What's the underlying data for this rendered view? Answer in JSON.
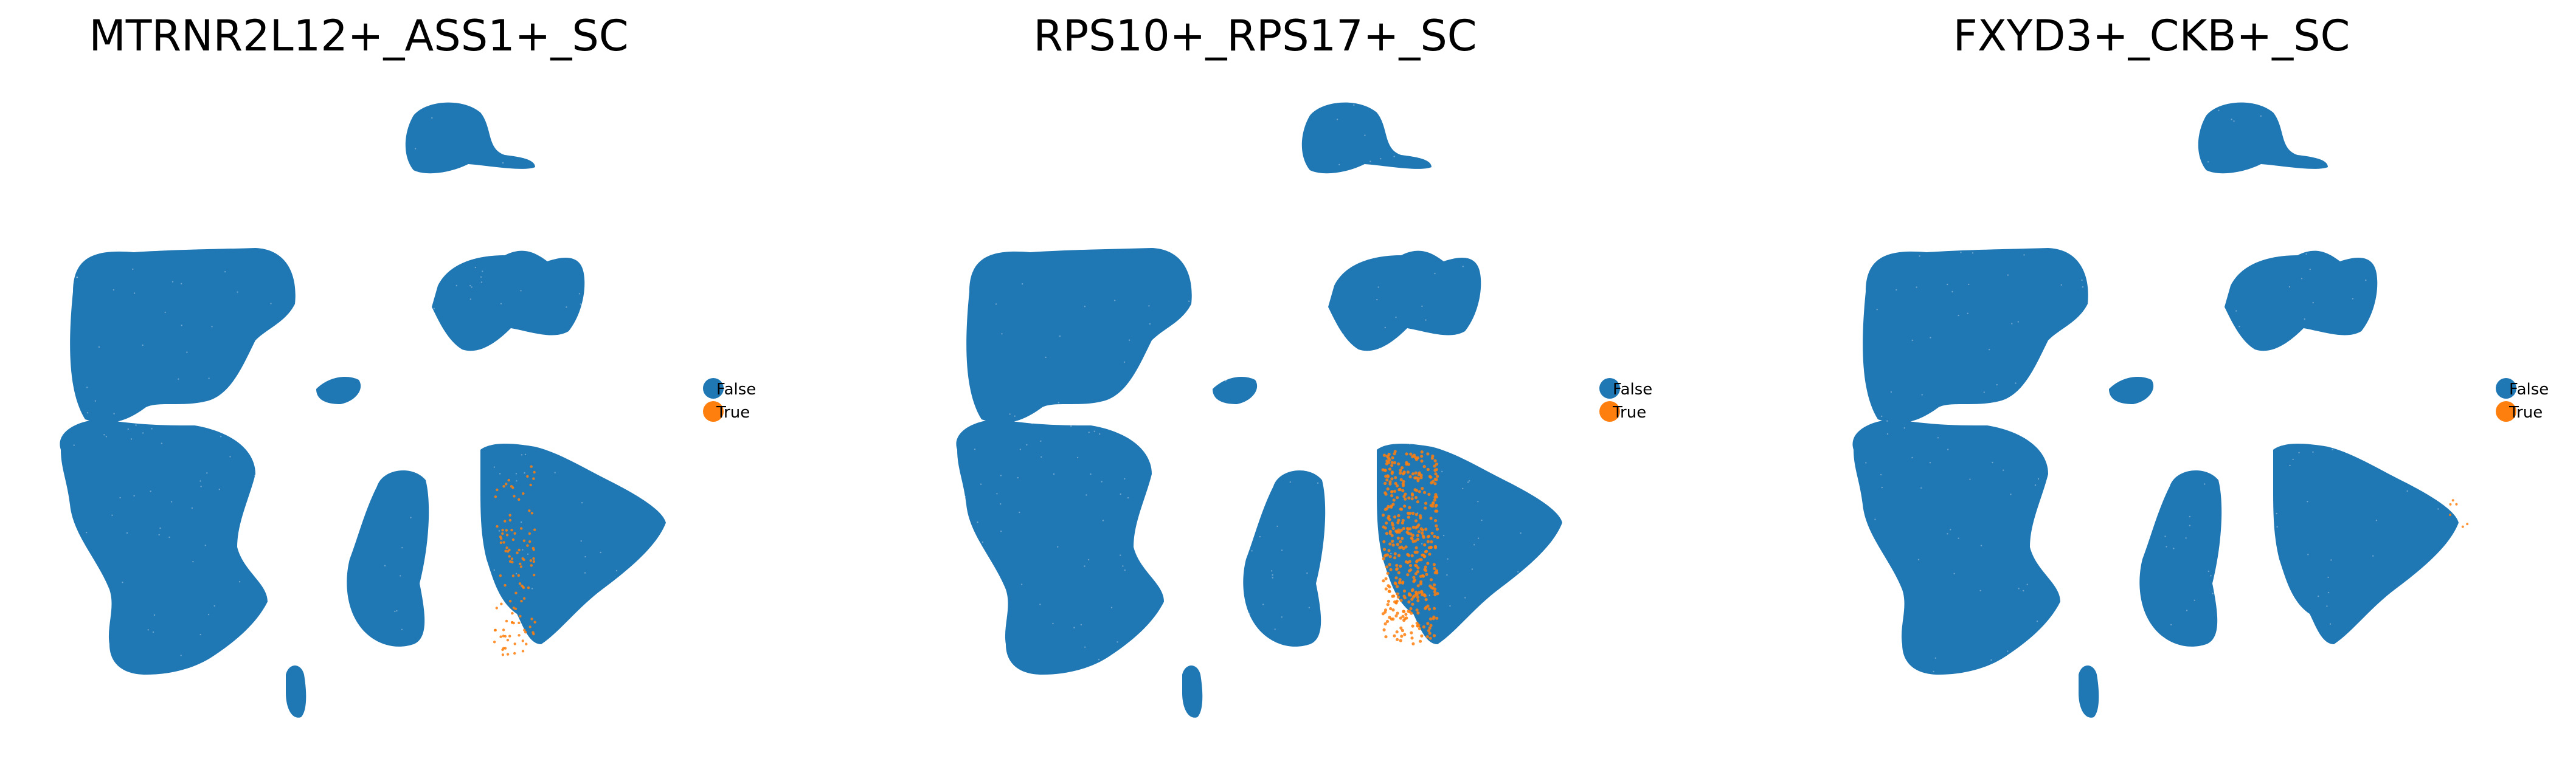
{
  "colors": {
    "false": "#1f77b4",
    "true": "#ff7f0e",
    "background": "#ffffff"
  },
  "legend": {
    "false_label": "False",
    "true_label": "True"
  },
  "chart_data": [
    {
      "type": "scatter",
      "title": "MTRNR2L12+_ASS1+_SC",
      "axes_visible": false,
      "grid": false,
      "legend_placement": "right",
      "series": [
        {
          "name": "False",
          "highlight": "none"
        },
        {
          "name": "True",
          "highlight": "sparse strip along left edge of right-middle cluster"
        }
      ]
    },
    {
      "type": "scatter",
      "title": "RPS10+_RPS17+_SC",
      "axes_visible": false,
      "grid": false,
      "legend_placement": "right",
      "series": [
        {
          "name": "False",
          "highlight": "none"
        },
        {
          "name": "True",
          "highlight": "dense band on left half of right-middle cluster"
        }
      ]
    },
    {
      "type": "scatter",
      "title": "FXYD3+_CKB+_SC",
      "axes_visible": false,
      "grid": false,
      "legend_placement": "right",
      "series": [
        {
          "name": "False",
          "highlight": "none"
        },
        {
          "name": "True",
          "highlight": "very few cells"
        }
      ]
    }
  ]
}
